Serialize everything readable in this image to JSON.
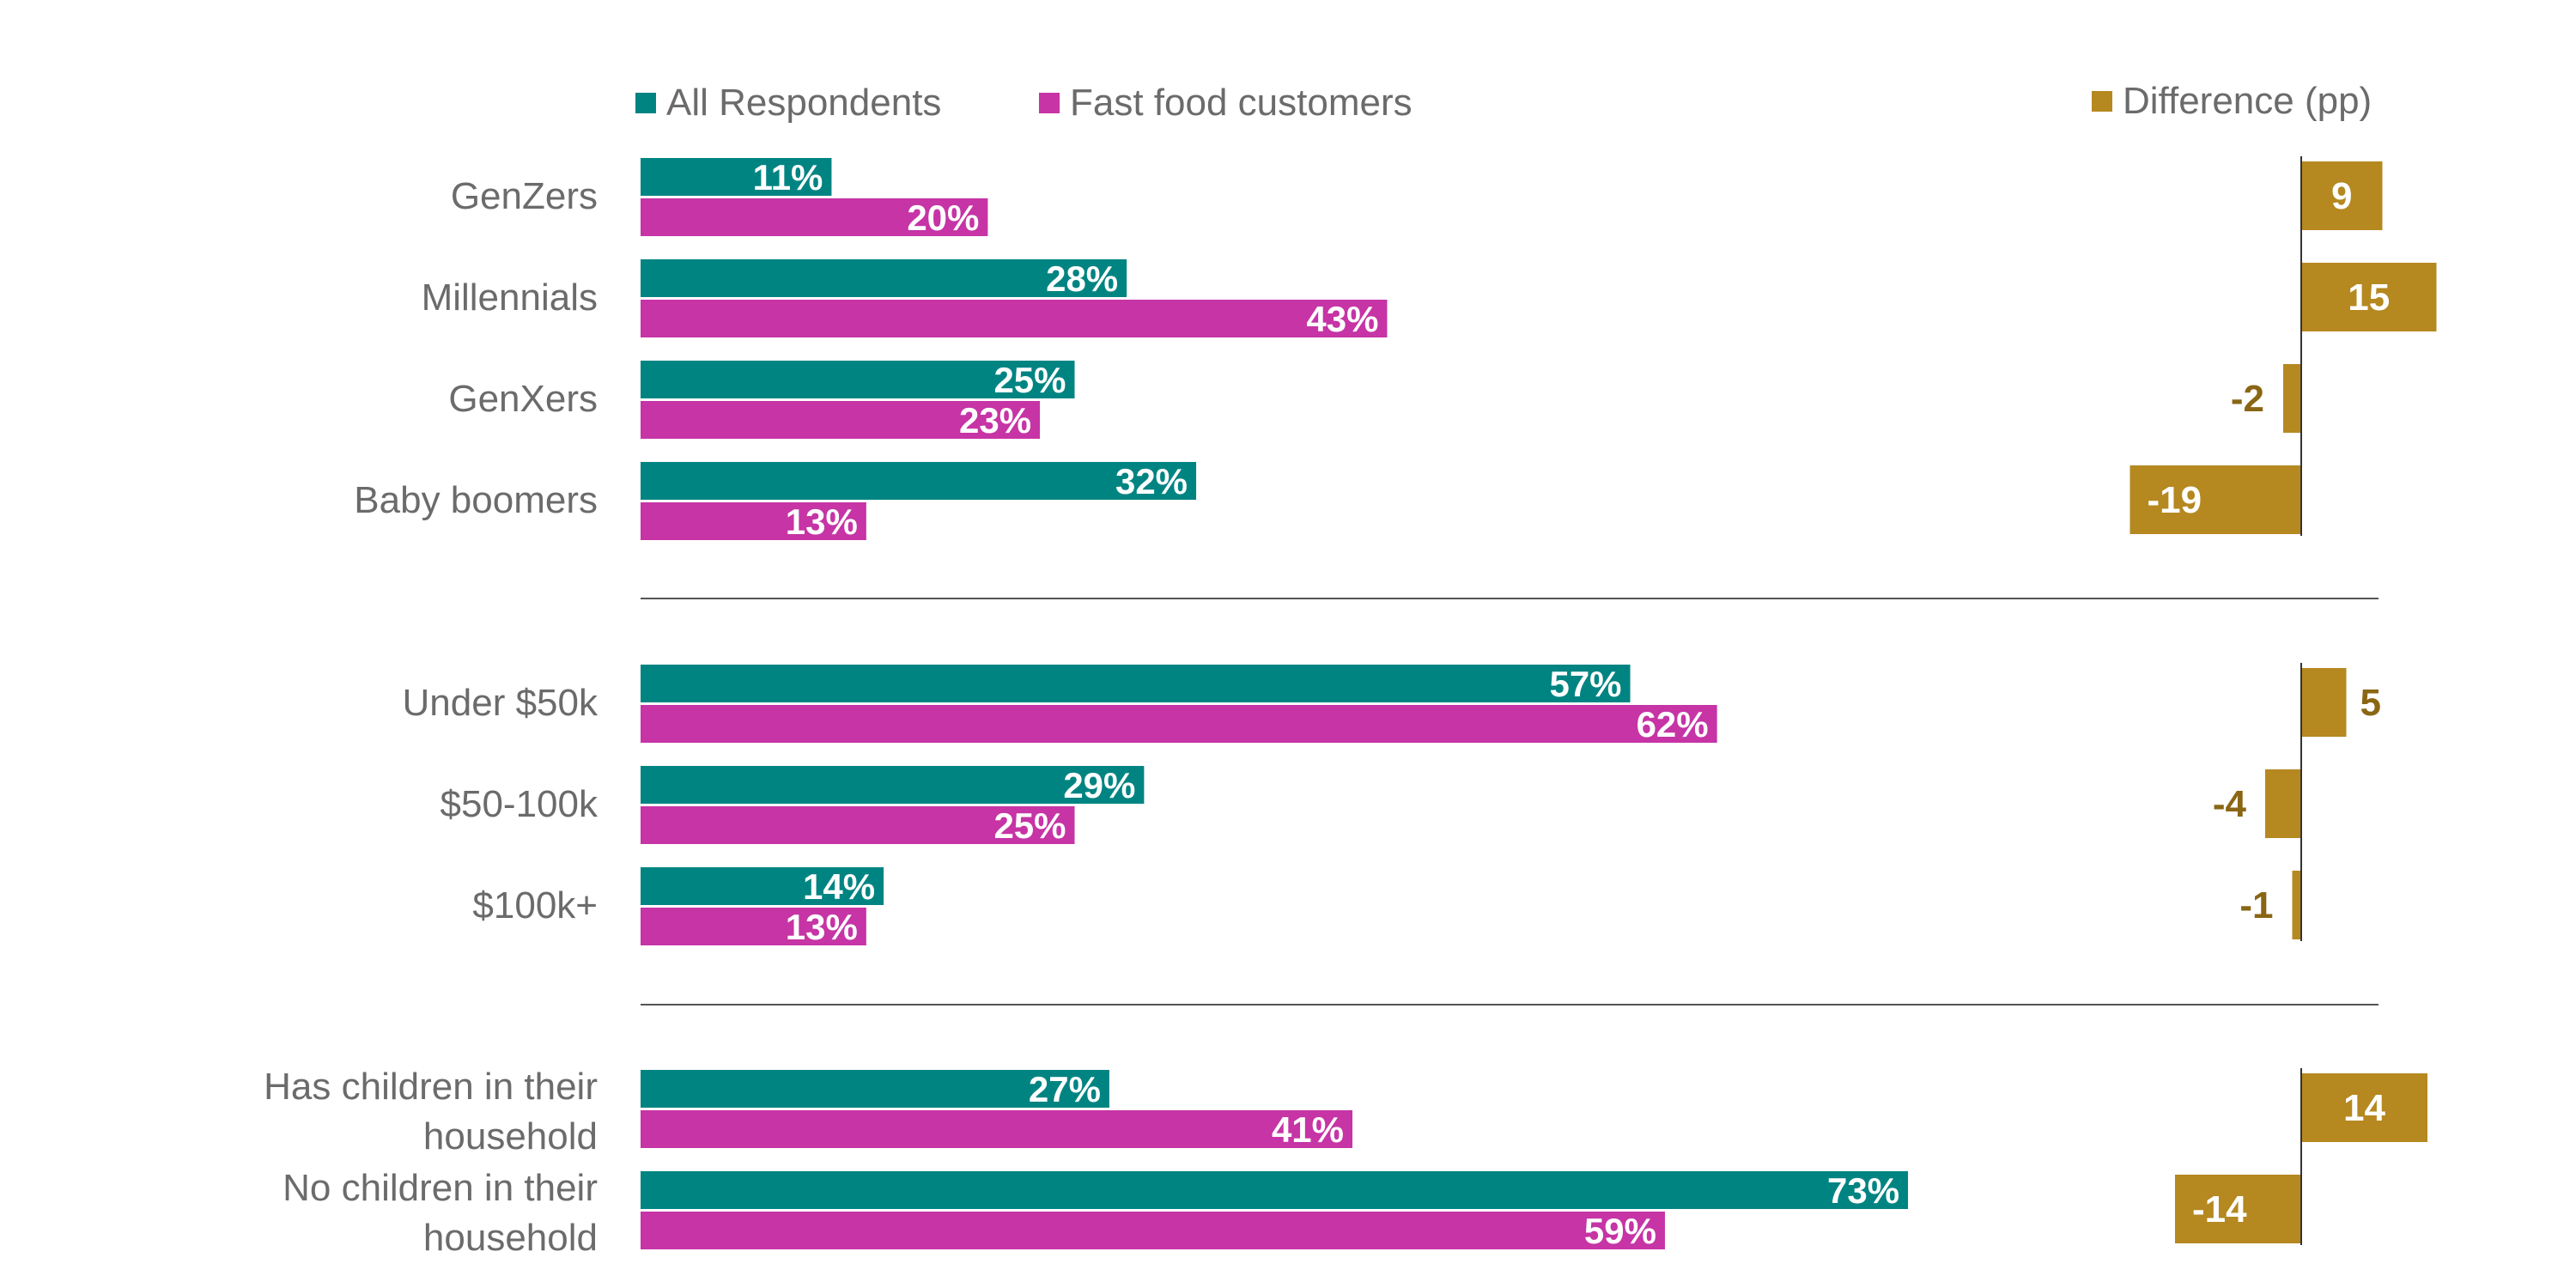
{
  "chart_data": {
    "type": "bar",
    "orientation": "horizontal",
    "unit": "%",
    "legend_placement": "top",
    "series": [
      {
        "name": "All Respondents",
        "color": "#008482"
      },
      {
        "name": "Fast food customers",
        "color": "#c634a5"
      }
    ],
    "difference_series": {
      "name": "Difference (pp)",
      "color": "#b58820",
      "label_color_outside": "#8a6614"
    },
    "groups": [
      {
        "categories": [
          {
            "label": [
              "GenZers"
            ],
            "all": 11,
            "fast": 20,
            "diff": 9
          },
          {
            "label": [
              "Millennials"
            ],
            "all": 28,
            "fast": 43,
            "diff": 15
          },
          {
            "label": [
              "GenXers"
            ],
            "all": 25,
            "fast": 23,
            "diff": -2
          },
          {
            "label": [
              "Baby boomers"
            ],
            "all": 32,
            "fast": 13,
            "diff": -19
          }
        ]
      },
      {
        "categories": [
          {
            "label": [
              "Under $50k"
            ],
            "all": 57,
            "fast": 62,
            "diff": 5
          },
          {
            "label": [
              "$50-100k"
            ],
            "all": 29,
            "fast": 25,
            "diff": -4
          },
          {
            "label": [
              "$100k+"
            ],
            "all": 14,
            "fast": 13,
            "diff": -1
          }
        ]
      },
      {
        "categories": [
          {
            "label": [
              "Has children in their",
              "household"
            ],
            "all": 27,
            "fast": 41,
            "diff": 14
          },
          {
            "label": [
              "No children in their",
              "household"
            ],
            "all": 73,
            "fast": 59,
            "diff": -14
          }
        ]
      }
    ]
  }
}
